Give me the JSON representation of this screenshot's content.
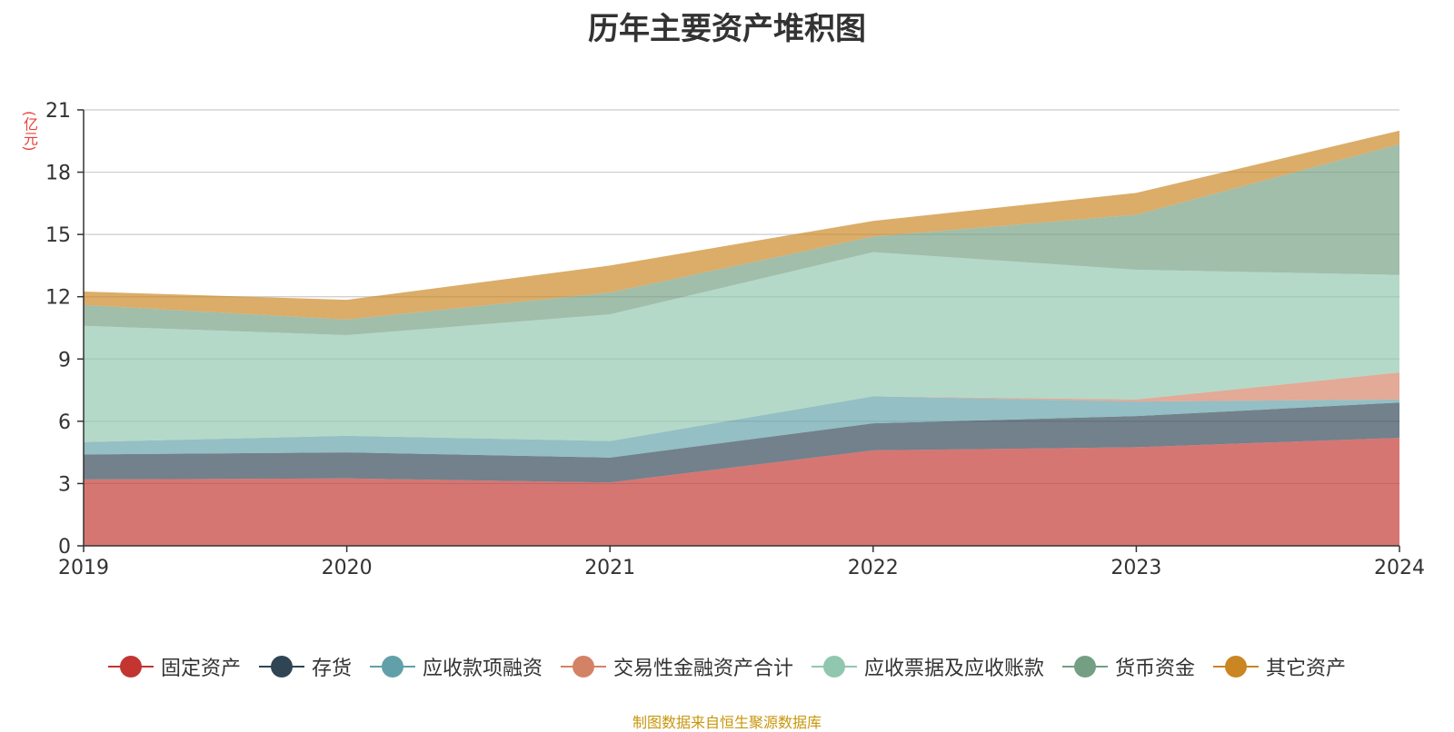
{
  "chart_data": {
    "type": "area",
    "title": "历年主要资产堆积图",
    "ylabel": "(亿元)",
    "ylim": [
      0,
      21
    ],
    "yticks": [
      0,
      3,
      6,
      9,
      12,
      15,
      18,
      21
    ],
    "x": [
      "2019",
      "2020",
      "2021",
      "2022",
      "2023",
      "2024"
    ],
    "stacked": true,
    "grid": true,
    "legend_position": "bottom",
    "series": [
      {
        "name": "固定资产",
        "color": "#c23531",
        "values": [
          3.2,
          3.25,
          3.05,
          4.6,
          4.75,
          5.2
        ]
      },
      {
        "name": "存货",
        "color": "#2f4554",
        "values": [
          1.2,
          1.25,
          1.2,
          1.3,
          1.5,
          1.7
        ]
      },
      {
        "name": "应收款项融资",
        "color": "#61a0a8",
        "values": [
          0.6,
          0.8,
          0.8,
          1.3,
          0.7,
          0.15
        ]
      },
      {
        "name": "交易性金融资产合计",
        "color": "#d48265",
        "values": [
          0.0,
          0.0,
          0.0,
          0.0,
          0.1,
          1.3
        ]
      },
      {
        "name": "应收票据及应收账款",
        "color": "#91c7ae",
        "values": [
          5.6,
          4.85,
          6.1,
          6.95,
          6.25,
          4.7
        ]
      },
      {
        "name": "货币资金",
        "color": "#749f83",
        "values": [
          1.0,
          0.75,
          1.05,
          0.75,
          2.65,
          6.3
        ]
      },
      {
        "name": "其它资产",
        "color": "#ca8622",
        "values": [
          0.65,
          0.95,
          1.3,
          0.75,
          1.05,
          0.65
        ]
      }
    ]
  },
  "footer": "制图数据来自恒生聚源数据库"
}
